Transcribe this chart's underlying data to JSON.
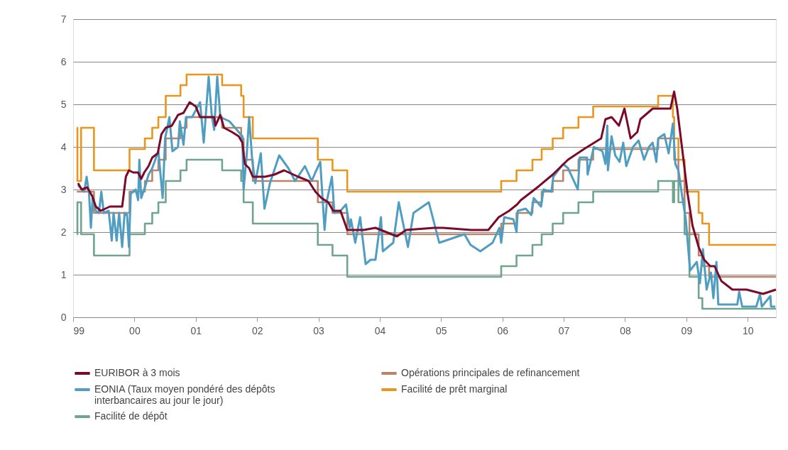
{
  "chart_data": {
    "type": "line",
    "xlim": [
      1999,
      2010.46
    ],
    "ylim": [
      0,
      7
    ],
    "xticks": [
      {
        "value": 1999,
        "label": "99"
      },
      {
        "value": 2000,
        "label": "00"
      },
      {
        "value": 2001,
        "label": "01"
      },
      {
        "value": 2002,
        "label": "02"
      },
      {
        "value": 2003,
        "label": "03"
      },
      {
        "value": 2004,
        "label": "04"
      },
      {
        "value": 2005,
        "label": "05"
      },
      {
        "value": 2006,
        "label": "06"
      },
      {
        "value": 2007,
        "label": "07"
      },
      {
        "value": 2008,
        "label": "08"
      },
      {
        "value": 2009,
        "label": "09"
      },
      {
        "value": 2010,
        "label": "10"
      }
    ],
    "yticks": [
      {
        "value": 0,
        "label": "0"
      },
      {
        "value": 1,
        "label": "1"
      },
      {
        "value": 2,
        "label": "2"
      },
      {
        "value": 3,
        "label": "3"
      },
      {
        "value": 4,
        "label": "4"
      },
      {
        "value": 5,
        "label": "5"
      },
      {
        "value": 6,
        "label": "6"
      },
      {
        "value": 7,
        "label": "7"
      }
    ],
    "grid": "y",
    "legend": "bottom",
    "series": [
      {
        "name": "EURIBOR à 3 mois",
        "color": "#7b0a2a",
        "x": [
          1999.08,
          1999.14,
          1999.23,
          1999.31,
          1999.37,
          1999.45,
          1999.6,
          1999.68,
          1999.8,
          1999.86,
          1999.91,
          1999.98,
          2000.06,
          2000.11,
          2000.16,
          2000.23,
          2000.29,
          2000.38,
          2000.44,
          2000.51,
          2000.61,
          2000.71,
          2000.8,
          2000.9,
          2001.0,
          2001.07,
          2001.17,
          2001.3,
          2001.32,
          2001.4,
          2001.46,
          2001.59,
          2001.7,
          2001.76,
          2001.8,
          2001.87,
          2001.93,
          2002.13,
          2002.28,
          2002.44,
          2002.67,
          2002.84,
          2002.95,
          2003.05,
          2003.16,
          2003.24,
          2003.36,
          2003.47,
          2003.74,
          2003.93,
          2004.28,
          2004.43,
          2004.89,
          2005.03,
          2005.49,
          2005.77,
          2005.94,
          2006.11,
          2006.24,
          2006.3,
          2006.57,
          2006.82,
          2007.07,
          2007.33,
          2007.61,
          2007.68,
          2007.78,
          2007.9,
          2007.99,
          2008.09,
          2008.2,
          2008.25,
          2008.45,
          2008.74,
          2008.8,
          2008.85,
          2008.94,
          2009.02,
          2009.1,
          2009.2,
          2009.29,
          2009.39,
          2009.46,
          2009.57,
          2009.75,
          2009.98,
          2010.25,
          2010.46
        ],
        "values": [
          3.15,
          3.0,
          3.05,
          2.85,
          2.6,
          2.5,
          2.6,
          2.6,
          2.6,
          3.3,
          3.45,
          3.4,
          3.4,
          3.25,
          3.4,
          3.55,
          3.75,
          3.85,
          4.3,
          4.45,
          4.5,
          4.75,
          4.8,
          5.05,
          4.95,
          4.7,
          4.7,
          4.7,
          4.5,
          4.75,
          4.45,
          4.35,
          4.25,
          4.1,
          3.6,
          3.5,
          3.3,
          3.3,
          3.35,
          3.45,
          3.3,
          3.2,
          2.95,
          2.8,
          2.7,
          2.5,
          2.5,
          2.05,
          2.05,
          2.1,
          1.9,
          2.05,
          2.1,
          2.1,
          2.05,
          2.05,
          2.35,
          2.5,
          2.65,
          2.75,
          3.05,
          3.35,
          3.7,
          3.95,
          4.2,
          4.65,
          4.7,
          4.5,
          4.9,
          4.2,
          4.35,
          4.65,
          4.9,
          4.9,
          5.3,
          4.9,
          3.85,
          2.9,
          2.15,
          1.65,
          1.35,
          1.2,
          1.2,
          0.85,
          0.65,
          0.65,
          0.55,
          0.65
        ]
      },
      {
        "name": "EONIA (Taux moyen pondéré des dépôts interbancaires au jour le jour)",
        "color": "#4f9dc1",
        "x": [
          1999.08,
          1999.18,
          1999.22,
          1999.26,
          1999.29,
          1999.32,
          1999.37,
          1999.42,
          1999.46,
          1999.5,
          1999.58,
          1999.63,
          1999.66,
          1999.71,
          1999.75,
          1999.8,
          1999.84,
          1999.88,
          1999.91,
          1999.94,
          2000.02,
          2000.06,
          2000.08,
          2000.11,
          2000.17,
          2000.23,
          2000.29,
          2000.34,
          2000.39,
          2000.46,
          2000.5,
          2000.57,
          2000.62,
          2000.71,
          2000.74,
          2000.8,
          2000.84,
          2000.94,
          2001.07,
          2001.13,
          2001.21,
          2001.26,
          2001.3,
          2001.35,
          2001.4,
          2001.55,
          2001.67,
          2001.76,
          2001.78,
          2001.83,
          2001.87,
          2001.92,
          2001.97,
          2002.06,
          2002.12,
          2002.21,
          2002.36,
          2002.51,
          2002.62,
          2002.78,
          2002.89,
          2002.95,
          2003.03,
          2003.1,
          2003.14,
          2003.22,
          2003.26,
          2003.36,
          2003.45,
          2003.51,
          2003.53,
          2003.6,
          2003.68,
          2003.77,
          2003.85,
          2003.93,
          2004.02,
          2004.05,
          2004.22,
          2004.31,
          2004.46,
          2004.55,
          2004.8,
          2004.97,
          2005.38,
          2005.48,
          2005.64,
          2005.84,
          2005.95,
          2005.98,
          2006.03,
          2006.18,
          2006.23,
          2006.25,
          2006.38,
          2006.47,
          2006.51,
          2006.63,
          2006.67,
          2006.8,
          2006.83,
          2006.99,
          2007.07,
          2007.23,
          2007.26,
          2007.38,
          2007.39,
          2007.49,
          2007.63,
          2007.68,
          2007.71,
          2007.72,
          2007.78,
          2007.84,
          2007.91,
          2007.97,
          2008.02,
          2008.13,
          2008.22,
          2008.31,
          2008.39,
          2008.45,
          2008.51,
          2008.54,
          2008.64,
          2008.71,
          2008.78,
          2008.82,
          2008.87,
          2008.93,
          2008.99,
          2009.06,
          2009.17,
          2009.22,
          2009.27,
          2009.33,
          2009.4,
          2009.44,
          2009.49,
          2009.52,
          2009.83,
          2009.86,
          2009.91,
          2010.14,
          2010.2,
          2010.23,
          2010.37,
          2010.38,
          2010.45
        ],
        "values": [
          3.1,
          2.95,
          3.3,
          2.9,
          2.1,
          2.85,
          2.5,
          2.45,
          2.95,
          2.45,
          2.5,
          1.8,
          2.45,
          1.8,
          2.45,
          1.65,
          2.45,
          2.4,
          1.65,
          2.9,
          3.0,
          2.75,
          3.7,
          2.8,
          3.05,
          3.35,
          3.5,
          3.7,
          3.9,
          2.8,
          4.2,
          4.7,
          3.9,
          4.0,
          4.6,
          4.05,
          4.7,
          4.7,
          5.05,
          4.1,
          5.65,
          4.75,
          4.4,
          5.65,
          4.7,
          4.6,
          4.4,
          4.25,
          3.0,
          3.8,
          4.7,
          3.7,
          3.15,
          3.85,
          2.55,
          3.15,
          3.8,
          3.5,
          3.2,
          3.55,
          3.2,
          3.4,
          3.65,
          2.05,
          2.75,
          3.3,
          2.45,
          2.5,
          2.65,
          2.1,
          2.3,
          1.75,
          2.35,
          1.25,
          1.35,
          1.35,
          2.35,
          1.55,
          1.75,
          2.7,
          1.65,
          2.45,
          2.7,
          1.75,
          1.95,
          1.7,
          1.55,
          1.75,
          2.1,
          1.75,
          2.35,
          2.3,
          2.0,
          2.5,
          2.55,
          2.4,
          2.8,
          2.6,
          3.0,
          2.95,
          3.3,
          3.6,
          3.5,
          3.0,
          3.75,
          3.75,
          3.35,
          4.0,
          3.9,
          3.6,
          4.5,
          3.45,
          4.25,
          3.8,
          3.65,
          4.1,
          3.55,
          4.0,
          4.15,
          3.7,
          4.0,
          4.1,
          3.65,
          4.2,
          4.3,
          3.85,
          4.55,
          3.6,
          3.45,
          2.85,
          2.3,
          1.1,
          1.3,
          0.8,
          1.6,
          0.65,
          1.05,
          0.45,
          1.3,
          0.3,
          0.3,
          0.6,
          0.25,
          0.25,
          0.55,
          0.25,
          0.5,
          0.25,
          0.25
        ]
      },
      {
        "name": "Facilité de dépôt",
        "type": "step",
        "color": "#6fa58f",
        "x": [
          1999.06,
          1999.07,
          1999.13,
          1999.34,
          1999.92,
          2000.17,
          2000.29,
          2000.39,
          2000.51,
          2000.75,
          2000.85,
          2001.43,
          2001.74,
          2001.78,
          2001.93,
          2002.99,
          2003.23,
          2003.47,
          2005.98,
          2006.23,
          2006.49,
          2006.64,
          2006.82,
          2006.99,
          2007.24,
          2007.48,
          2008.54,
          2008.78,
          2008.8,
          2008.87,
          2008.97,
          2009.05,
          2009.2,
          2009.26,
          2010.46
        ],
        "values": [
          1.95,
          2.7,
          1.95,
          1.45,
          1.95,
          2.2,
          2.45,
          2.7,
          3.2,
          3.45,
          3.7,
          3.45,
          3.2,
          2.7,
          2.2,
          1.7,
          1.45,
          0.95,
          1.2,
          1.45,
          1.7,
          1.95,
          2.2,
          2.45,
          2.7,
          2.95,
          3.2,
          2.7,
          3.2,
          2.7,
          1.95,
          0.95,
          0.45,
          0.2,
          0.2
        ]
      },
      {
        "name": "Opérations principales de refinancement",
        "type": "step",
        "color": "#b8856b",
        "x": [
          1999.06,
          1999.34,
          1999.92,
          2000.17,
          2000.29,
          2000.39,
          2000.51,
          2000.75,
          2000.85,
          2001.43,
          2001.74,
          2001.78,
          2001.93,
          2002.99,
          2003.23,
          2003.47,
          2005.98,
          2006.23,
          2006.49,
          2006.64,
          2006.82,
          2006.99,
          2007.24,
          2007.48,
          2008.54,
          2008.8,
          2008.87,
          2008.97,
          2009.05,
          2009.2,
          2009.26,
          2009.37,
          2010.46
        ],
        "values": [
          2.95,
          2.45,
          2.95,
          3.2,
          3.45,
          3.7,
          4.2,
          4.45,
          4.7,
          4.45,
          4.2,
          3.7,
          3.2,
          2.7,
          2.45,
          1.95,
          2.2,
          2.45,
          2.7,
          2.95,
          3.2,
          3.45,
          3.7,
          3.95,
          4.2,
          3.7,
          3.2,
          2.45,
          1.95,
          1.45,
          1.2,
          0.95,
          0.95
        ]
      },
      {
        "name": "Facilité de prêt marginal",
        "type": "step",
        "color": "#e8961e",
        "x": [
          1999.06,
          1999.07,
          1999.13,
          1999.34,
          1999.92,
          2000.17,
          2000.29,
          2000.39,
          2000.51,
          2000.75,
          2000.85,
          2001.43,
          2001.74,
          2001.78,
          2001.93,
          2002.99,
          2003.23,
          2003.47,
          2005.98,
          2006.23,
          2006.49,
          2006.64,
          2006.82,
          2006.99,
          2007.24,
          2007.48,
          2008.54,
          2008.78,
          2008.8,
          2008.87,
          2008.97,
          2009.2,
          2009.26,
          2009.37,
          2010.46
        ],
        "values": [
          4.45,
          3.2,
          4.45,
          3.45,
          3.95,
          4.2,
          4.45,
          4.7,
          5.2,
          5.45,
          5.7,
          5.45,
          5.2,
          4.7,
          4.2,
          3.7,
          3.45,
          2.95,
          3.2,
          3.45,
          3.7,
          3.95,
          4.2,
          4.45,
          4.7,
          4.95,
          5.2,
          4.7,
          4.2,
          3.7,
          2.95,
          2.45,
          2.2,
          1.7,
          1.7
        ]
      }
    ]
  }
}
